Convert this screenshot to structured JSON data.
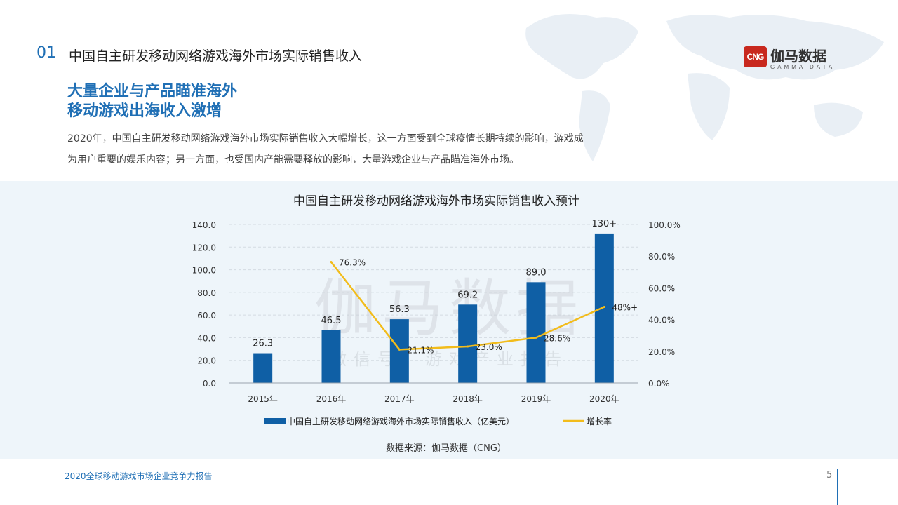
{
  "header": {
    "section_number": "01",
    "section_title": "中国自主研发移动网络游戏海外市场实际销售收入"
  },
  "logo": {
    "badge": "CNG",
    "name_cn": "伽马数据",
    "name_en": "GAMMA DATA"
  },
  "headline": {
    "line1": "大量企业与产品瞄准海外",
    "line2": "移动游戏出海收入激增"
  },
  "paragraph": {
    "line1": "2020年，中国自主研发移动网络游戏海外市场实际销售收入大幅增长，这一方面受到全球疫情长期持续的影响，游戏成",
    "line2": "为用户重要的娱乐内容；另一方面，也受国内产能需要释放的影响，大量游戏企业与产品瞄准海外市场。"
  },
  "watermark": {
    "big": "伽马数据",
    "small": "微信号：游戏产业报告"
  },
  "chart_data": {
    "type": "bar",
    "title": "中国自主研发移动网络游戏海外市场实际销售收入预计",
    "categories": [
      "2015年",
      "2016年",
      "2017年",
      "2018年",
      "2019年",
      "2020年"
    ],
    "series": [
      {
        "name": "中国自主研发移动网络游戏海外市场实际销售收入（亿美元）",
        "type": "bar",
        "axis": "left",
        "values": [
          26.3,
          46.5,
          56.3,
          69.2,
          89.0,
          132
        ],
        "labels": [
          "26.3",
          "46.5",
          "56.3",
          "69.2",
          "89.0",
          "130+"
        ],
        "color": "#0f5fa5"
      },
      {
        "name": "增长率",
        "type": "line",
        "axis": "right",
        "values": [
          null,
          76.3,
          21.1,
          23.0,
          28.6,
          48
        ],
        "labels": [
          "",
          "76.3%",
          "21.1%",
          "23.0%",
          "28.6%",
          "48%+"
        ],
        "color": "#f2bc1b"
      }
    ],
    "y_left": {
      "min": 0,
      "max": 140,
      "step": 20,
      "tick_labels": [
        "0.0",
        "20.0",
        "40.0",
        "60.0",
        "80.0",
        "100.0",
        "120.0",
        "140.0"
      ]
    },
    "y_right": {
      "min": 0,
      "max": 100,
      "step": 20,
      "tick_labels": [
        "0.0%",
        "20.0%",
        "40.0%",
        "60.0%",
        "80.0%",
        "100.0%"
      ]
    },
    "grid": true,
    "legend": "bottom",
    "source": "数据来源：伽马数据（CNG）"
  },
  "footer": {
    "report_title": "2020全球移动游戏市场企业竞争力报告",
    "page_number": "5"
  }
}
